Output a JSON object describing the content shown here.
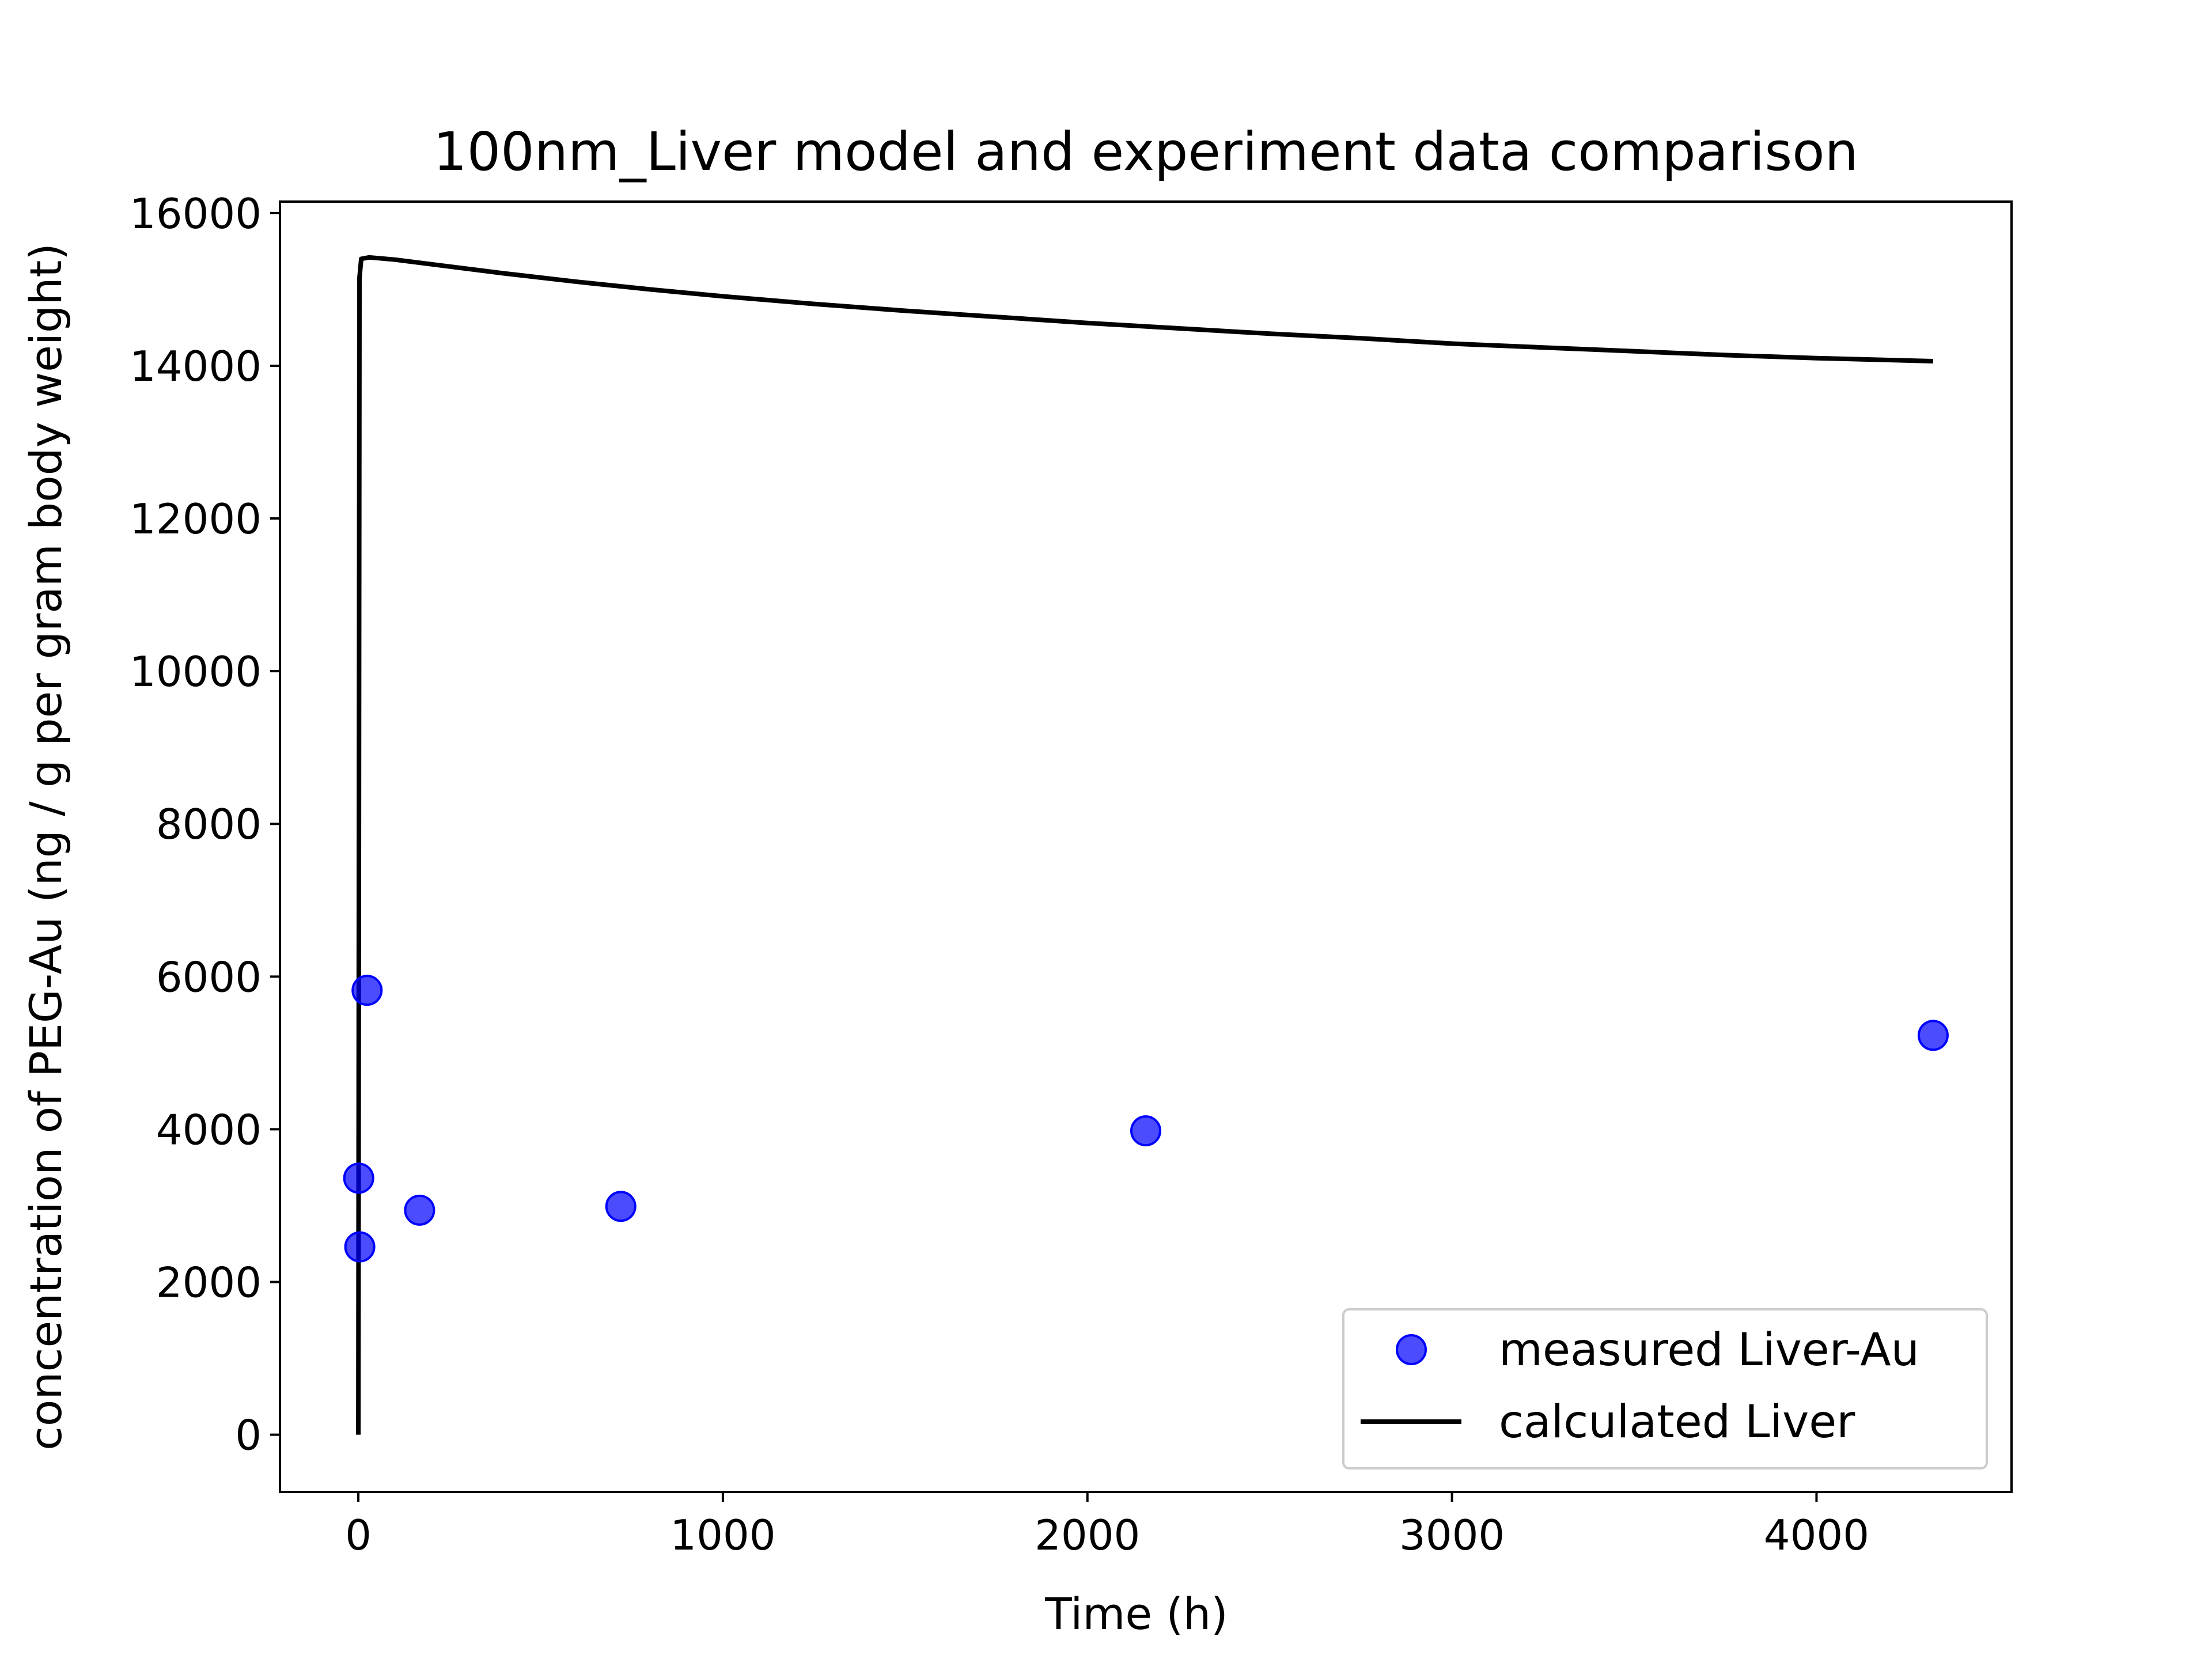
{
  "chart_data": {
    "type": "scatter",
    "title": "100nm_Liver model and experiment data comparison",
    "xlabel": "Time (h)",
    "ylabel": "concentration of PEG-Au (ng / g per gram body weight)",
    "xlim": [
      -215,
      4535
    ],
    "ylim": [
      -750,
      16150
    ],
    "xticks": [
      0,
      1000,
      2000,
      3000,
      4000
    ],
    "xtick_labels": [
      "0",
      "1000",
      "2000",
      "3000",
      "4000"
    ],
    "yticks": [
      0,
      2000,
      4000,
      6000,
      8000,
      10000,
      12000,
      14000,
      16000
    ],
    "ytick_labels": [
      "0",
      "2000",
      "4000",
      "6000",
      "8000",
      "10000",
      "12000",
      "14000",
      "16000"
    ],
    "grid": false,
    "legend_position": "lower-right",
    "series": [
      {
        "name": "measured Liver-Au",
        "kind": "scatter",
        "color": "#0000ff",
        "points": [
          {
            "x": 1,
            "y": 3360
          },
          {
            "x": 4,
            "y": 2460
          },
          {
            "x": 24,
            "y": 5820
          },
          {
            "x": 168,
            "y": 2940
          },
          {
            "x": 720,
            "y": 2990
          },
          {
            "x": 2160,
            "y": 3980
          },
          {
            "x": 4320,
            "y": 5230
          }
        ]
      },
      {
        "name": "calculated Liver",
        "kind": "line",
        "color": "#000000",
        "points": [
          {
            "x": 0,
            "y": 0
          },
          {
            "x": 3,
            "y": 15150
          },
          {
            "x": 8,
            "y": 15400
          },
          {
            "x": 30,
            "y": 15420
          },
          {
            "x": 100,
            "y": 15390
          },
          {
            "x": 200,
            "y": 15330
          },
          {
            "x": 400,
            "y": 15210
          },
          {
            "x": 600,
            "y": 15100
          },
          {
            "x": 800,
            "y": 15000
          },
          {
            "x": 1000,
            "y": 14910
          },
          {
            "x": 1250,
            "y": 14810
          },
          {
            "x": 1500,
            "y": 14720
          },
          {
            "x": 1750,
            "y": 14640
          },
          {
            "x": 2000,
            "y": 14560
          },
          {
            "x": 2250,
            "y": 14490
          },
          {
            "x": 2500,
            "y": 14420
          },
          {
            "x": 2750,
            "y": 14360
          },
          {
            "x": 3000,
            "y": 14290
          },
          {
            "x": 3250,
            "y": 14240
          },
          {
            "x": 3500,
            "y": 14190
          },
          {
            "x": 3750,
            "y": 14140
          },
          {
            "x": 4000,
            "y": 14100
          },
          {
            "x": 4320,
            "y": 14060
          }
        ]
      }
    ]
  }
}
